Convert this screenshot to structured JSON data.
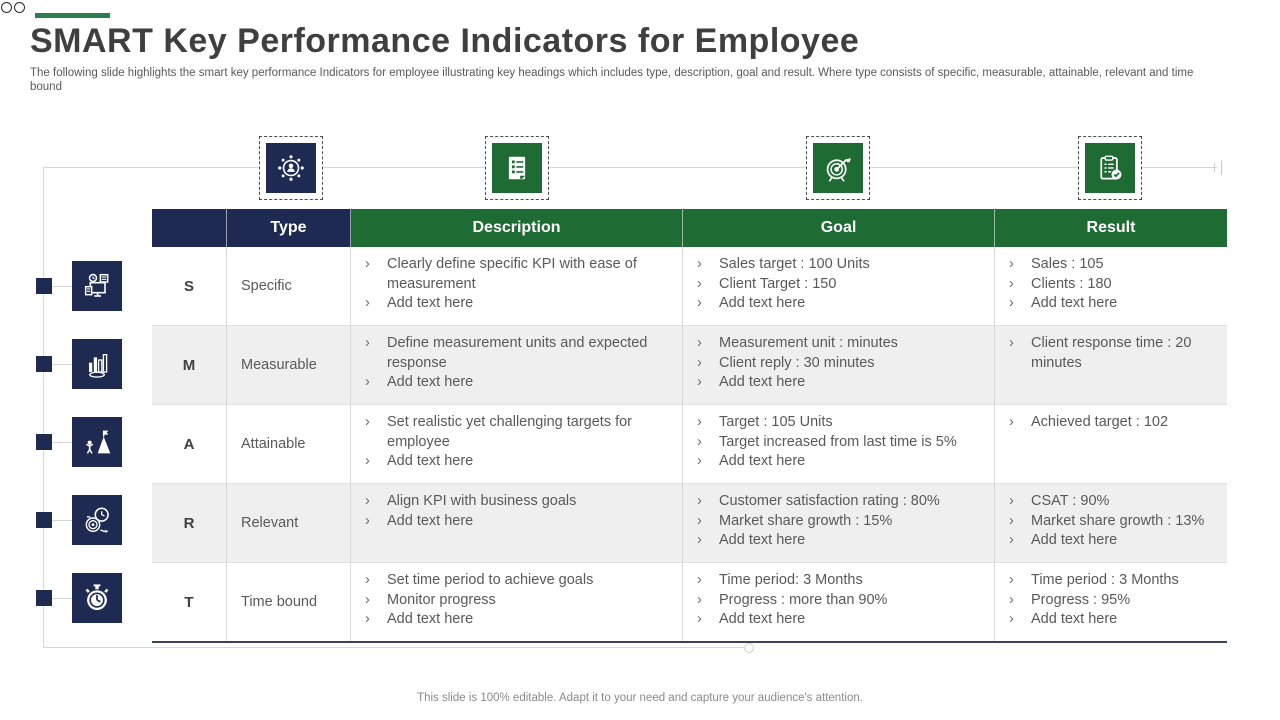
{
  "slide": {
    "title": "SMART Key Performance Indicators for Employee",
    "subtitle": "The following slide highlights the smart key performance Indicators for employee illustrating key headings which includes type, description, goal and result. Where type consists of specific, measurable, attainable, relevant and time bound",
    "footer": "This slide is 100% editable. Adapt it to your need and capture your audience's attention."
  },
  "colors": {
    "navy": "#1f2a52",
    "green": "#1e6b33",
    "accent_dash_green": "#2e7d4e",
    "row_alt_gray": "#efefef",
    "body_text": "#595959",
    "title_text": "#3f3f3f"
  },
  "icons": {
    "top": [
      "employee-network-icon",
      "checklist-document-icon",
      "target-arrow-icon",
      "clipboard-check-icon"
    ],
    "left": [
      "devices-monitor-icon",
      "bar-chart-icon",
      "mountain-achievement-icon",
      "clock-target-icon",
      "stopwatch-icon"
    ]
  },
  "table": {
    "bullet_marker": "›",
    "headers": [
      "",
      "Type",
      "Description",
      "Goal",
      "Result"
    ],
    "rows": [
      {
        "letter": "S",
        "type": "Specific",
        "description": [
          "Clearly define specific KPI with ease of measurement",
          "Add text here"
        ],
        "goal": [
          "Sales target : 100 Units",
          "Client Target : 150",
          "Add text here"
        ],
        "result": [
          "Sales : 105",
          "Clients : 180",
          "Add text here"
        ]
      },
      {
        "letter": "M",
        "type": "Measurable",
        "description": [
          "Define measurement units and expected response",
          "Add text here"
        ],
        "goal": [
          "Measurement unit : minutes",
          "Client reply :  30 minutes",
          "Add text here"
        ],
        "result": [
          "Client response time : 20 minutes"
        ]
      },
      {
        "letter": "A",
        "type": "Attainable",
        "description": [
          "Set realistic yet challenging targets for employee",
          "Add text here"
        ],
        "goal": [
          "Target : 105 Units",
          "Target increased from last time is 5%",
          "Add text here"
        ],
        "result": [
          "Achieved target : 102"
        ]
      },
      {
        "letter": "R",
        "type": "Relevant",
        "description": [
          "Align KPI with business goals",
          "Add text here"
        ],
        "goal": [
          "Customer satisfaction rating : 80%",
          "Market share growth : 15%",
          "Add text here"
        ],
        "result": [
          "CSAT : 90%",
          "Market share growth : 13%",
          "Add text here"
        ]
      },
      {
        "letter": "T",
        "type": "Time bound",
        "description": [
          "Set time period to achieve goals",
          "Monitor progress",
          "Add text here"
        ],
        "goal": [
          "Time period: 3 Months",
          "Progress : more than 90%",
          "Add text here"
        ],
        "result": [
          "Time period : 3 Months",
          "Progress : 95%",
          "Add text here"
        ]
      }
    ]
  }
}
